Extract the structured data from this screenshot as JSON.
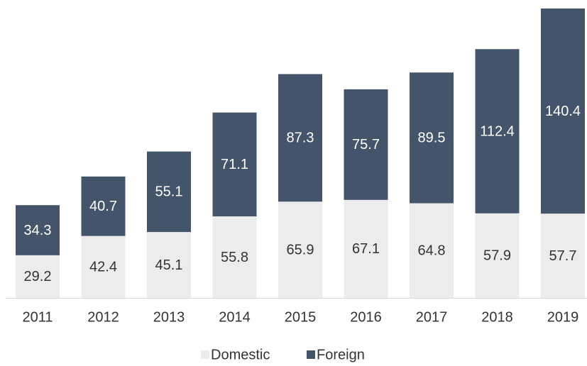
{
  "chart_data": {
    "type": "stacked_bar",
    "categories": [
      "2011",
      "2012",
      "2013",
      "2014",
      "2015",
      "2016",
      "2017",
      "2018",
      "2019"
    ],
    "series": [
      {
        "name": "Domestic",
        "color": "#ececec",
        "values": [
          29.2,
          42.4,
          45.1,
          55.8,
          65.9,
          67.1,
          64.8,
          57.9,
          57.7
        ]
      },
      {
        "name": "Foreign",
        "color": "#44546a",
        "values": [
          34.3,
          40.7,
          55.1,
          71.1,
          87.3,
          75.7,
          89.5,
          112.4,
          140.4
        ]
      }
    ],
    "legend": "bottom"
  }
}
